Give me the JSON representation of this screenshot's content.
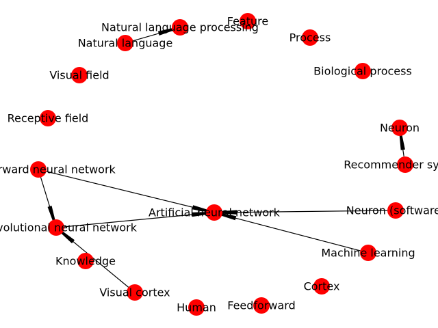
{
  "graph": {
    "node_color": "#ff0000",
    "edge_color": "#000000",
    "background": "#ffffff",
    "nodes": [
      {
        "id": "natural_language_processing",
        "label": "Natural language processing"
      },
      {
        "id": "feature",
        "label": "Feature"
      },
      {
        "id": "natural_language",
        "label": "Natural language"
      },
      {
        "id": "process",
        "label": "Process"
      },
      {
        "id": "visual_field",
        "label": "Visual field"
      },
      {
        "id": "biological_process",
        "label": "Biological process"
      },
      {
        "id": "receptive_field",
        "label": "Receptive field"
      },
      {
        "id": "neuron",
        "label": "Neuron"
      },
      {
        "id": "feedforward_neural_network",
        "label": "Feedforward neural network"
      },
      {
        "id": "recommender_system",
        "label": "Recommender system"
      },
      {
        "id": "artificial_neural_network",
        "label": "Artificial neural network"
      },
      {
        "id": "neuron_software",
        "label": "Neuron (software)"
      },
      {
        "id": "convolutional_neural_network",
        "label": "Convolutional neural network"
      },
      {
        "id": "machine_learning",
        "label": "Machine learning"
      },
      {
        "id": "knowledge",
        "label": "Knowledge"
      },
      {
        "id": "cortex",
        "label": "Cortex"
      },
      {
        "id": "visual_cortex",
        "label": "Visual cortex"
      },
      {
        "id": "human",
        "label": "Human"
      },
      {
        "id": "feedforward",
        "label": "Feedforward"
      }
    ],
    "edges": [
      {
        "source": "natural_language",
        "target": "natural_language_processing"
      },
      {
        "source": "recommender_system",
        "target": "neuron"
      },
      {
        "source": "feedforward_neural_network",
        "target": "convolutional_neural_network"
      },
      {
        "source": "feedforward_neural_network",
        "target": "artificial_neural_network"
      },
      {
        "source": "convolutional_neural_network",
        "target": "artificial_neural_network"
      },
      {
        "source": "neuron_software",
        "target": "artificial_neural_network"
      },
      {
        "source": "machine_learning",
        "target": "artificial_neural_network"
      },
      {
        "source": "visual_cortex",
        "target": "convolutional_neural_network"
      }
    ]
  }
}
